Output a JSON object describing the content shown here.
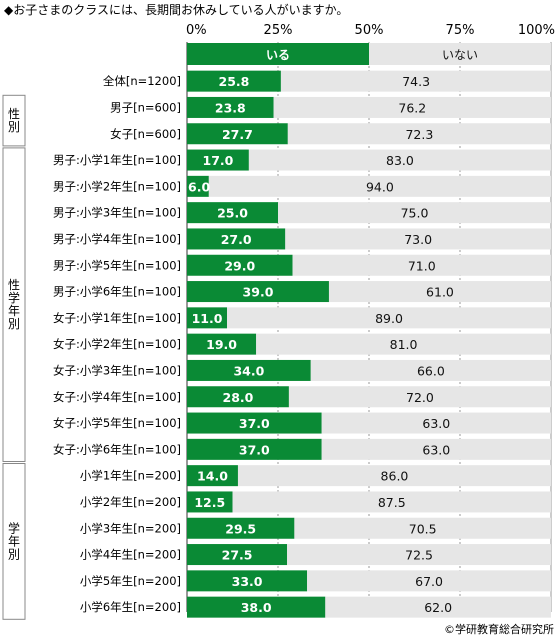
{
  "chart_data": {
    "type": "bar",
    "stacked": true,
    "orientation": "horizontal",
    "title": "◆お子さまのクラスには、長期間お休みしている人がいますか。",
    "xlim": [
      0,
      100
    ],
    "x_ticks": [
      "0%",
      "25%",
      "50%",
      "75%",
      "100%"
    ],
    "legend": [
      "いる",
      "いない"
    ],
    "colors": {
      "いる": "#0a8a35",
      "いない": "#e6e6e6"
    },
    "categories": [
      "全体[n=1200]",
      "男子[n=600]",
      "女子[n=600]",
      "男子:小学1年生[n=100]",
      "男子:小学2年生[n=100]",
      "男子:小学3年生[n=100]",
      "男子:小学4年生[n=100]",
      "男子:小学5年生[n=100]",
      "男子:小学6年生[n=100]",
      "女子:小学1年生[n=100]",
      "女子:小学2年生[n=100]",
      "女子:小学3年生[n=100]",
      "女子:小学4年生[n=100]",
      "女子:小学5年生[n=100]",
      "女子:小学6年生[n=100]",
      "小学1年生[n=200]",
      "小学2年生[n=200]",
      "小学3年生[n=200]",
      "小学4年生[n=200]",
      "小学5年生[n=200]",
      "小学6年生[n=200]"
    ],
    "series": [
      {
        "name": "いる",
        "values": [
          25.8,
          23.8,
          27.7,
          17.0,
          6.0,
          25.0,
          27.0,
          29.0,
          39.0,
          11.0,
          19.0,
          34.0,
          28.0,
          37.0,
          37.0,
          14.0,
          12.5,
          29.5,
          27.5,
          33.0,
          38.0
        ]
      },
      {
        "name": "いない",
        "values": [
          74.3,
          76.2,
          72.3,
          83.0,
          94.0,
          75.0,
          73.0,
          71.0,
          61.0,
          89.0,
          81.0,
          66.0,
          72.0,
          63.0,
          63.0,
          86.0,
          87.5,
          70.5,
          72.5,
          67.0,
          62.0
        ]
      }
    ],
    "value_labels": {
      "いる": [
        "25.8",
        "23.8",
        "27.7",
        "17.0",
        "6.0",
        "25.0",
        "27.0",
        "29.0",
        "39.0",
        "11.0",
        "19.0",
        "34.0",
        "28.0",
        "37.0",
        "37.0",
        "14.0",
        "12.5",
        "29.5",
        "27.5",
        "33.0",
        "38.0"
      ],
      "いない": [
        "74.3",
        "76.2",
        "72.3",
        "83.0",
        "94.0",
        "75.0",
        "73.0",
        "71.0",
        "61.0",
        "89.0",
        "81.0",
        "66.0",
        "72.0",
        "63.0",
        "63.0",
        "86.0",
        "87.5",
        "70.5",
        "72.5",
        "67.0",
        "62.0"
      ]
    },
    "groups": [
      {
        "label": "性別",
        "rows": [
          1,
          2
        ]
      },
      {
        "label": "性学年別",
        "rows": [
          3,
          14
        ]
      },
      {
        "label": "学年別",
        "rows": [
          15,
          20
        ]
      }
    ],
    "source": "©学研教育総合研究所"
  }
}
